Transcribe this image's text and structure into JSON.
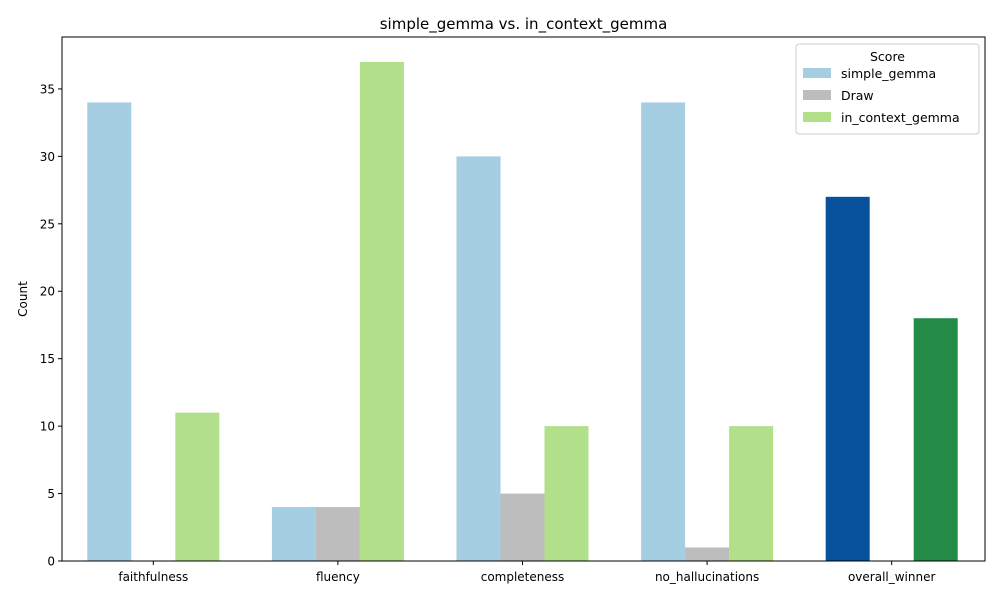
{
  "chart_data": {
    "type": "bar",
    "title": "simple_gemma vs. in_context_gemma",
    "xlabel": "",
    "ylabel": "Count",
    "ylim": [
      0,
      38.85
    ],
    "yticks": [
      0,
      5,
      10,
      15,
      20,
      25,
      30,
      35
    ],
    "categories": [
      "faithfulness",
      "fluency",
      "completeness",
      "no_hallucinations",
      "overall_winner"
    ],
    "series": [
      {
        "name": "simple_gemma",
        "color": "#a6cee3",
        "values": [
          34,
          4,
          30,
          34,
          27
        ]
      },
      {
        "name": "Draw",
        "color": "#bdbdbd",
        "values": [
          0,
          4,
          5,
          1,
          0
        ]
      },
      {
        "name": "in_context_gemma",
        "color": "#b2df8a",
        "values": [
          11,
          37,
          10,
          10,
          18
        ]
      }
    ],
    "highlight_colors": {
      "overall_winner": [
        "#08519c",
        "#bdbdbd",
        "#238b45"
      ]
    },
    "legend": {
      "title": "Score",
      "position": "upper right"
    },
    "grid": false
  }
}
